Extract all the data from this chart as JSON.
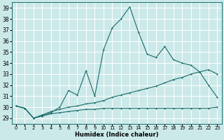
{
  "xlabel": "Humidex (Indice chaleur)",
  "xlim": [
    -0.5,
    23.5
  ],
  "ylim": [
    28.5,
    39.5
  ],
  "yticks": [
    29,
    30,
    31,
    32,
    33,
    34,
    35,
    36,
    37,
    38,
    39
  ],
  "xticks": [
    0,
    1,
    2,
    3,
    4,
    5,
    6,
    7,
    8,
    9,
    10,
    11,
    12,
    13,
    14,
    15,
    16,
    17,
    18,
    19,
    20,
    21,
    22,
    23
  ],
  "bg_color": "#cce9e9",
  "line_color": "#1a6b6b",
  "line1_x": [
    0,
    1,
    2,
    3,
    4,
    5,
    6,
    7,
    8,
    9,
    10,
    11,
    12,
    13,
    14,
    15,
    16,
    17,
    18,
    19,
    20,
    21,
    22,
    23
  ],
  "line1_y": [
    30.1,
    29.9,
    29.0,
    29.2,
    29.5,
    30.0,
    31.5,
    31.1,
    33.3,
    31.0,
    35.2,
    37.2,
    38.0,
    39.1,
    36.8,
    34.8,
    34.5,
    35.5,
    34.3,
    34.0,
    33.8,
    33.2,
    32.0,
    30.9
  ],
  "line2_x": [
    0,
    1,
    2,
    3,
    4,
    5,
    6,
    7,
    8,
    9,
    10,
    11,
    12,
    13,
    14,
    15,
    16,
    17,
    18,
    19,
    20,
    21,
    22,
    23
  ],
  "line2_y": [
    30.1,
    29.9,
    29.0,
    29.3,
    29.6,
    29.8,
    30.0,
    30.1,
    30.3,
    30.4,
    30.6,
    30.9,
    31.1,
    31.3,
    31.5,
    31.7,
    31.9,
    32.2,
    32.5,
    32.7,
    33.0,
    33.2,
    33.4,
    33.0
  ],
  "line3_x": [
    0,
    1,
    2,
    3,
    4,
    5,
    6,
    7,
    8,
    9,
    10,
    11,
    12,
    13,
    14,
    15,
    16,
    17,
    18,
    19,
    20,
    21,
    22,
    23
  ],
  "line3_y": [
    30.1,
    29.9,
    29.0,
    29.2,
    29.4,
    29.5,
    29.6,
    29.7,
    29.8,
    29.8,
    29.9,
    29.9,
    29.9,
    29.9,
    29.9,
    29.9,
    29.9,
    29.9,
    29.9,
    29.9,
    29.9,
    29.9,
    29.9,
    30.0
  ]
}
